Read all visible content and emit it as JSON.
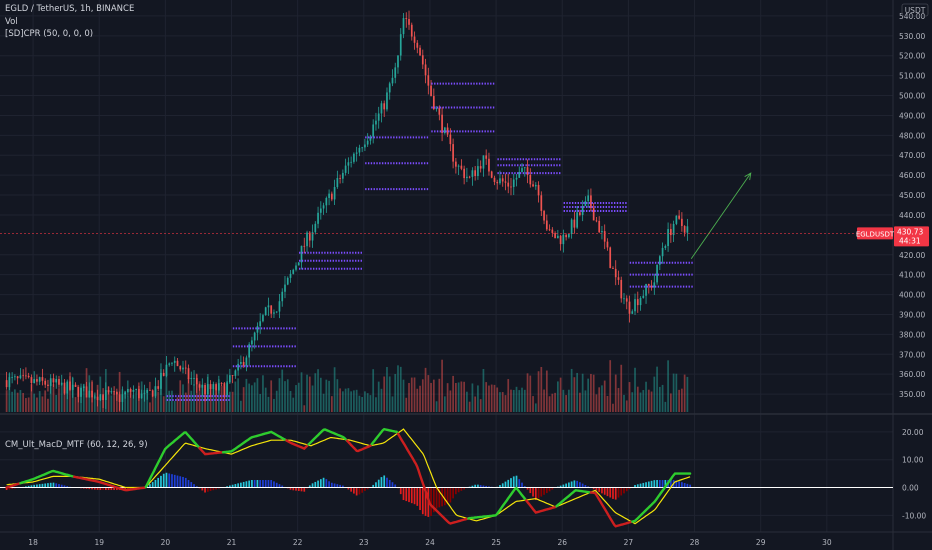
{
  "legend": {
    "symbol_line": "EGLD / TetherUS, 1h, BINANCE",
    "vol_label": "Vol",
    "cpr_label": "[SD]CPR (50, 0, 0, 0)",
    "macd_label": "CM_Ult_MacD_MTF (60, 12, 26, 9)"
  },
  "currency": "USDT",
  "colors": {
    "background": "#131722",
    "up": "#26a69a",
    "down": "#ef5350",
    "cpr": "#7c4dff",
    "macd_line": "#2ecc2e",
    "macd_line_down": "#cc1f1f",
    "signal_line": "#f5e50a",
    "hist_pos": "#26c6da",
    "hist_pos_weak": "#1e3fd8",
    "hist_neg": "#e31e1e",
    "hist_neg_weak": "#8b0000",
    "zero_line": "#ffffff",
    "arrow": "#4caf50",
    "price_tag": "#f23645"
  },
  "price_tag": {
    "symbol": "EGLDUSDT",
    "price": "430.73",
    "countdown": "44:31",
    "value": 430.73
  },
  "price_axis": {
    "range": [
      341,
      548
    ],
    "ticks": [
      "350.00",
      "360.00",
      "370.00",
      "380.00",
      "390.00",
      "400.00",
      "410.00",
      "420.00",
      "440.00",
      "450.00",
      "460.00",
      "470.00",
      "480.00",
      "490.00",
      "500.00",
      "510.00",
      "520.00",
      "530.00",
      "540.00"
    ]
  },
  "macd_axis": {
    "range": [
      -16,
      25
    ],
    "ticks": [
      "20.00",
      "10.00",
      "0.00",
      "-10.00"
    ]
  },
  "time_axis": {
    "range": [
      17.5,
      31
    ],
    "ticks": [
      "18",
      "19",
      "20",
      "21",
      "22",
      "23",
      "24",
      "25",
      "26",
      "27",
      "28",
      "29",
      "30"
    ]
  },
  "chart_data": {
    "type": "candlestick",
    "interval": "1h",
    "close_path": [
      [
        17.6,
        357
      ],
      [
        18.0,
        356
      ],
      [
        18.3,
        355
      ],
      [
        18.6,
        352
      ],
      [
        19.0,
        350
      ],
      [
        19.3,
        348
      ],
      [
        19.5,
        352
      ],
      [
        19.7,
        348
      ],
      [
        19.9,
        355
      ],
      [
        20.1,
        368
      ],
      [
        20.3,
        360
      ],
      [
        20.6,
        352
      ],
      [
        20.9,
        353
      ],
      [
        21.1,
        362
      ],
      [
        21.3,
        375
      ],
      [
        21.5,
        390
      ],
      [
        21.7,
        395
      ],
      [
        21.9,
        410
      ],
      [
        22.1,
        425
      ],
      [
        22.3,
        438
      ],
      [
        22.5,
        450
      ],
      [
        22.7,
        462
      ],
      [
        22.9,
        473
      ],
      [
        23.1,
        482
      ],
      [
        23.3,
        495
      ],
      [
        23.5,
        515
      ],
      [
        23.6,
        538
      ],
      [
        23.8,
        528
      ],
      [
        24.0,
        502
      ],
      [
        24.2,
        483
      ],
      [
        24.4,
        465
      ],
      [
        24.6,
        458
      ],
      [
        24.8,
        468
      ],
      [
        25.0,
        458
      ],
      [
        25.2,
        455
      ],
      [
        25.4,
        462
      ],
      [
        25.6,
        456
      ],
      [
        25.8,
        430
      ],
      [
        26.0,
        428
      ],
      [
        26.2,
        437
      ],
      [
        26.4,
        447
      ],
      [
        26.6,
        430
      ],
      [
        26.8,
        408
      ],
      [
        27.0,
        393
      ],
      [
        27.2,
        400
      ],
      [
        27.4,
        407
      ],
      [
        27.5,
        423
      ],
      [
        27.7,
        437
      ],
      [
        27.9,
        433
      ]
    ],
    "volume_max_percent_axis": 100,
    "cpr_levels": [
      {
        "day": "20",
        "levels": [
          347,
          349
        ]
      },
      {
        "day": "21",
        "levels": [
          383,
          374,
          364
        ]
      },
      {
        "day": "22",
        "levels": [
          421,
          417,
          413
        ]
      },
      {
        "day": "23",
        "levels": [
          479,
          466,
          453
        ]
      },
      {
        "day": "24",
        "levels": [
          506,
          494,
          482
        ]
      },
      {
        "day": "25",
        "levels": [
          468,
          465,
          461
        ]
      },
      {
        "day": "26",
        "levels": [
          446,
          444,
          442
        ]
      },
      {
        "day": "27",
        "levels": [
          416,
          410,
          404
        ]
      }
    ],
    "projection_arrow": {
      "from": [
        27.95,
        418
      ],
      "to": [
        28.85,
        461
      ]
    },
    "macd": {
      "params": [
        60,
        12,
        26,
        9
      ],
      "macd_path": [
        [
          17.6,
          0
        ],
        [
          18.0,
          3
        ],
        [
          18.3,
          6
        ],
        [
          18.6,
          4
        ],
        [
          19.0,
          2
        ],
        [
          19.4,
          -1
        ],
        [
          19.7,
          0
        ],
        [
          20.0,
          14
        ],
        [
          20.3,
          20
        ],
        [
          20.6,
          12
        ],
        [
          21.0,
          13
        ],
        [
          21.3,
          18
        ],
        [
          21.6,
          20
        ],
        [
          21.9,
          16
        ],
        [
          22.1,
          14
        ],
        [
          22.4,
          21
        ],
        [
          22.7,
          18
        ],
        [
          22.9,
          13
        ],
        [
          23.1,
          15
        ],
        [
          23.3,
          21
        ],
        [
          23.5,
          20
        ],
        [
          23.8,
          8
        ],
        [
          24.0,
          -6
        ],
        [
          24.3,
          -13
        ],
        [
          24.6,
          -11
        ],
        [
          25.0,
          -10
        ],
        [
          25.3,
          0
        ],
        [
          25.6,
          -9
        ],
        [
          25.9,
          -7
        ],
        [
          26.2,
          -1
        ],
        [
          26.5,
          -2
        ],
        [
          26.8,
          -14
        ],
        [
          27.1,
          -12
        ],
        [
          27.4,
          -5
        ],
        [
          27.7,
          5
        ],
        [
          27.95,
          5
        ]
      ],
      "signal_path": [
        [
          17.6,
          1
        ],
        [
          18.0,
          2
        ],
        [
          18.3,
          4
        ],
        [
          18.6,
          4
        ],
        [
          19.0,
          3
        ],
        [
          19.4,
          0
        ],
        [
          19.7,
          0
        ],
        [
          20.0,
          8
        ],
        [
          20.3,
          16
        ],
        [
          20.6,
          14
        ],
        [
          21.0,
          12
        ],
        [
          21.3,
          15
        ],
        [
          21.6,
          17
        ],
        [
          21.9,
          17
        ],
        [
          22.2,
          15
        ],
        [
          22.5,
          18
        ],
        [
          22.8,
          17
        ],
        [
          23.1,
          15
        ],
        [
          23.3,
          16
        ],
        [
          23.6,
          21
        ],
        [
          23.9,
          12
        ],
        [
          24.1,
          0
        ],
        [
          24.4,
          -10
        ],
        [
          24.7,
          -12
        ],
        [
          25.0,
          -10
        ],
        [
          25.3,
          -5
        ],
        [
          25.6,
          -4
        ],
        [
          25.9,
          -7
        ],
        [
          26.2,
          -4
        ],
        [
          26.5,
          -1
        ],
        [
          26.8,
          -9
        ],
        [
          27.1,
          -13
        ],
        [
          27.4,
          -8
        ],
        [
          27.7,
          2
        ],
        [
          27.95,
          4
        ]
      ]
    }
  }
}
